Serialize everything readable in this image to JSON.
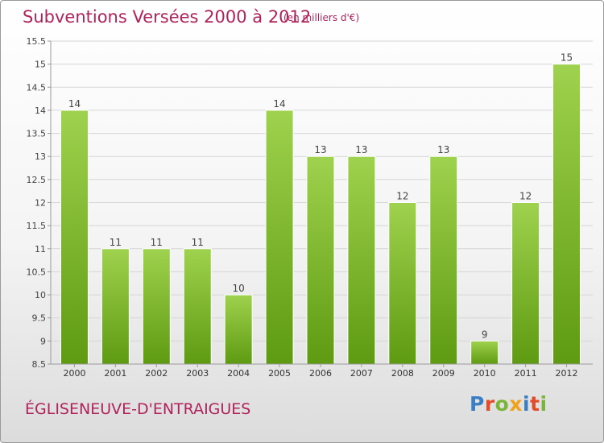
{
  "header": {
    "title": "Subventions Versées 2000 à 2012",
    "subtitle": "(en milliers d'€)"
  },
  "footer": {
    "commune": "ÉGLISENEUVE-D'ENTRAIGUES",
    "logo": "Proxiti"
  },
  "colors": {
    "accent": "#b0235a",
    "bar_light": "#9fd24e",
    "bar_dark": "#5e9a12",
    "logo": [
      "#3a7fc4",
      "#e24c2b",
      "#7ab53a",
      "#f1a21b",
      "#3a7fc4",
      "#e24c2b",
      "#7ab53a"
    ]
  },
  "chart_data": {
    "type": "bar",
    "title": "Subventions Versées 2000 à 2012",
    "subtitle": "(en milliers d'€)",
    "categories": [
      "2000",
      "2001",
      "2002",
      "2003",
      "2004",
      "2005",
      "2006",
      "2007",
      "2008",
      "2009",
      "2010",
      "2011",
      "2012"
    ],
    "values": [
      14,
      11,
      11,
      11,
      10,
      14,
      13,
      13,
      12,
      13,
      9,
      12,
      15
    ],
    "ylim": [
      8.5,
      15.5
    ],
    "yticks": [
      "8.5",
      "9",
      "9.5",
      "10",
      "10.5",
      "11",
      "11.5",
      "12",
      "12.5",
      "13",
      "13.5",
      "14",
      "14.5",
      "15",
      "15.5"
    ],
    "grid": true,
    "xlabel": "",
    "ylabel": ""
  }
}
